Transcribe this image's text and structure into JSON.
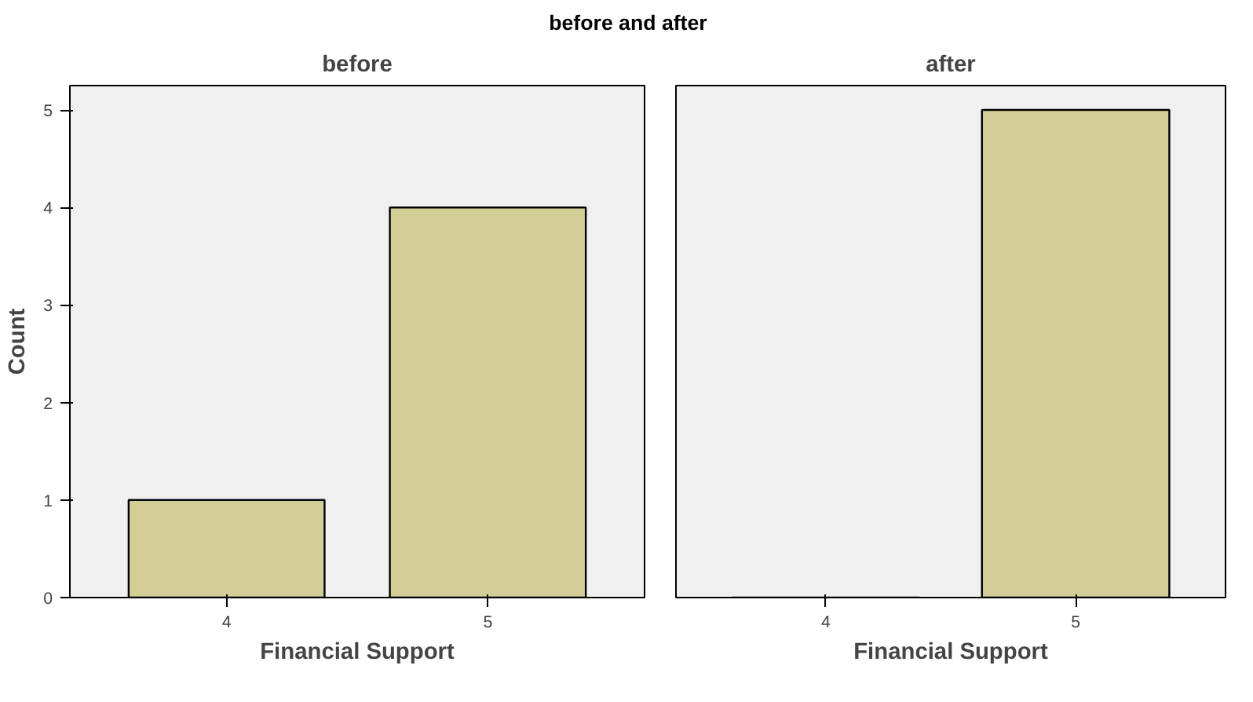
{
  "chart_data": [
    {
      "type": "bar",
      "title": "before and after",
      "subtitle": "before",
      "xlabel": "Financial Support",
      "ylabel": "Count",
      "categories": [
        "4",
        "5"
      ],
      "values": [
        1,
        4
      ],
      "color": "#d3cd96",
      "ylim": [
        0,
        5.25
      ],
      "yticks": [
        0,
        1,
        2,
        3,
        4,
        5
      ],
      "grid": false
    },
    {
      "type": "bar",
      "subtitle": "after",
      "xlabel": "Financial Support",
      "categories": [
        "4",
        "5"
      ],
      "values": [
        0,
        5
      ],
      "color": "#d3cd96",
      "ylim": [
        0,
        5.25
      ],
      "yticks": [
        0,
        1,
        2,
        3,
        4,
        5
      ],
      "grid": false,
      "tick_labels": "x"
    }
  ]
}
